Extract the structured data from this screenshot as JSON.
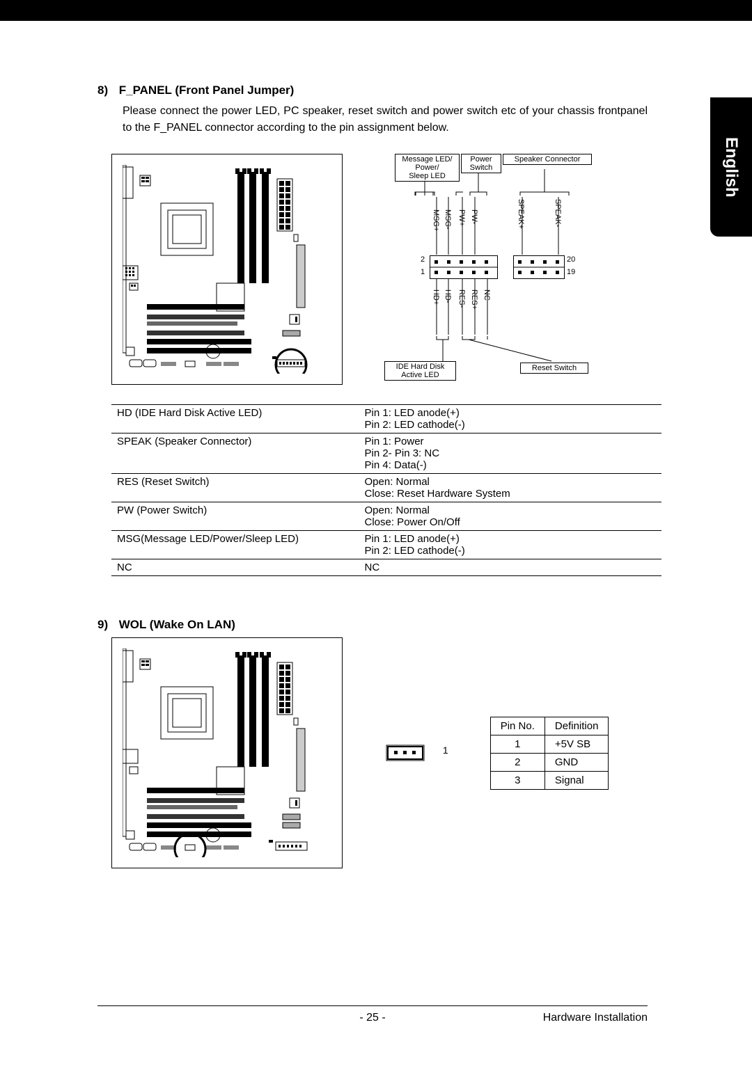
{
  "sideTab": "English",
  "section8": {
    "num": "8)",
    "title": "F_PANEL (Front Panel Jumper)",
    "desc": "Please connect the power LED, PC speaker, reset switch and power switch etc of your chassis frontpanel to the F_PANEL connector according to the pin assignment below.",
    "labels": {
      "msg": "Message LED/\nPower/\nSleep LED",
      "pwr": "Power\nSwitch",
      "spk": "Speaker Connector",
      "hdd": "IDE Hard Disk\nActive LED",
      "rst": "Reset Switch",
      "top": [
        "MSG+",
        "MSG-",
        "PW+",
        "PW-",
        "SPEAK+",
        "SPEAK-"
      ],
      "bot": [
        "HD+",
        "HD-",
        "RES-",
        "RES+",
        "NC"
      ],
      "p2": "2",
      "p1": "1",
      "p20": "20",
      "p19": "19"
    },
    "table": [
      [
        "HD (IDE Hard Disk Active LED)",
        "Pin 1: LED anode(+)\nPin 2: LED cathode(-)"
      ],
      [
        "SPEAK (Speaker Connector)",
        "Pin 1: Power\nPin 2- Pin 3: NC\nPin 4: Data(-)"
      ],
      [
        "RES (Reset Switch)",
        "Open: Normal\nClose: Reset Hardware System"
      ],
      [
        "PW (Power Switch)",
        "Open: Normal\nClose: Power On/Off"
      ],
      [
        "MSG(Message LED/Power/Sleep LED)",
        "Pin 1: LED anode(+)\nPin 2: LED cathode(-)"
      ],
      [
        "NC",
        "NC"
      ]
    ]
  },
  "section9": {
    "num": "9)",
    "title": "WOL (Wake On LAN)",
    "connLabel": "1",
    "table": {
      "headers": [
        "Pin No.",
        "Definition"
      ],
      "rows": [
        [
          "1",
          "+5V SB"
        ],
        [
          "2",
          "GND"
        ],
        [
          "3",
          "Signal"
        ]
      ]
    }
  },
  "footer": {
    "page": "- 25 -",
    "label": "Hardware Installation"
  },
  "colors": {
    "black": "#000000",
    "white": "#ffffff"
  }
}
